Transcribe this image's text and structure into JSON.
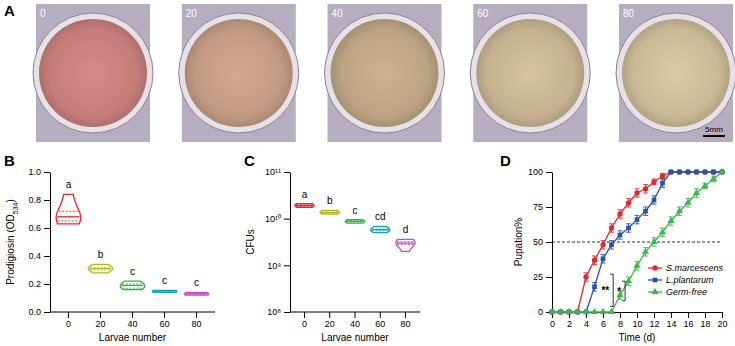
{
  "chart_data": [
    {
      "type": "image",
      "panel": "A",
      "labels": [
        "0",
        "20",
        "40",
        "60",
        "80"
      ],
      "colors": [
        "#d98a86",
        "#d4a890",
        "#cdb28f",
        "#d8c39d",
        "#dccaa4"
      ],
      "scale_bar": "5mm"
    },
    {
      "type": "violin",
      "panel": "B",
      "y_label": "Prodigiosin (OD534)",
      "x_label": "Larvae number",
      "categories": [
        "0",
        "20",
        "40",
        "60",
        "80"
      ],
      "values": [
        [
          0.63,
          0.65,
          0.68,
          0.72,
          0.84
        ],
        [
          0.28,
          0.3,
          0.31,
          0.32,
          0.34
        ],
        [
          0.16,
          0.17,
          0.19,
          0.2,
          0.22
        ],
        [
          0.14,
          0.145,
          0.15,
          0.15,
          0.155
        ],
        [
          0.12,
          0.125,
          0.13,
          0.13,
          0.14
        ]
      ],
      "colors": [
        "#e4262b",
        "#b3b624",
        "#2fb24b",
        "#1aa3b0",
        "#c04fbf"
      ],
      "annotations": [
        "a",
        "b",
        "c",
        "c",
        "c"
      ],
      "ylim": [
        0,
        1
      ],
      "yticks": [
        {
          "value": 0,
          "label": "0.0"
        },
        {
          "value": 0.2,
          "label": "0.2"
        },
        {
          "value": 0.4,
          "label": "0.4"
        },
        {
          "value": 0.6,
          "label": "0.6"
        },
        {
          "value": 0.8,
          "label": "0.8"
        },
        {
          "value": 1,
          "label": "1.0"
        }
      ]
    },
    {
      "type": "violin",
      "panel": "C",
      "log": "y",
      "y_label": "CFUs",
      "x_label": "Larvae number",
      "categories": [
        "0",
        "20",
        "40",
        "60",
        "80"
      ],
      "values": [
        [
          17500000000,
          18500000000,
          19000000000,
          20000000000,
          21000000000
        ],
        [
          12500000000,
          13000000000,
          13500000000,
          14000000000,
          15000000000
        ],
        [
          8000000000,
          8500000000,
          8800000000,
          9000000000,
          9500000000
        ],
        [
          5000000000,
          5500000000,
          5800000000,
          6000000000,
          6800000000
        ],
        [
          2000000000,
          2800000000,
          3000000000,
          3200000000,
          3600000000
        ]
      ],
      "colors": [
        "#e4262b",
        "#b3b624",
        "#2fb24b",
        "#1aa3b0",
        "#c04fbf"
      ],
      "annotations": [
        "a",
        "b",
        "c",
        "cd",
        "d"
      ],
      "ylim": [
        100000000,
        100000000000
      ],
      "yticks": [
        {
          "value": 100000000,
          "label": "10⁸"
        },
        {
          "value": 1000000000,
          "label": "10⁹"
        },
        {
          "value": 10000000000,
          "label": "10¹⁰"
        },
        {
          "value": 100000000000,
          "label": "10¹¹"
        }
      ]
    },
    {
      "type": "line",
      "panel": "D",
      "y_label": "Pupation%",
      "x_label": "Time (d)",
      "x": [
        0,
        1,
        2,
        3,
        4,
        5,
        6,
        7,
        8,
        9,
        10,
        11,
        12,
        13,
        14,
        15,
        16,
        17,
        18,
        19,
        20
      ],
      "series": [
        {
          "name": "S.marcescens",
          "color": "#e4262b",
          "marker": "circle",
          "values": [
            0,
            0,
            0,
            0,
            25,
            37,
            48,
            60,
            70,
            78,
            85,
            88,
            93,
            97,
            100,
            100,
            100,
            100,
            100,
            100,
            100
          ],
          "errors": [
            0,
            0,
            0,
            0,
            3,
            3,
            3,
            3,
            3,
            3,
            3,
            3,
            2,
            2,
            0,
            0,
            0,
            0,
            0,
            0,
            0
          ]
        },
        {
          "name": "L.plantarum",
          "color": "#2655a8",
          "marker": "square",
          "values": [
            0,
            0,
            0,
            0,
            0,
            18,
            38,
            48,
            55,
            60,
            66,
            72,
            80,
            92,
            100,
            100,
            100,
            100,
            100,
            100,
            100
          ],
          "errors": [
            0,
            0,
            0,
            0,
            0,
            3,
            3,
            3,
            3,
            3,
            3,
            3,
            3,
            3,
            0,
            0,
            0,
            0,
            0,
            0,
            0
          ]
        },
        {
          "name": "Germ-free",
          "color": "#3cb84a",
          "marker": "triangle",
          "values": [
            0,
            0,
            0,
            0,
            0,
            0,
            0,
            0,
            12,
            22,
            33,
            43,
            50,
            57,
            65,
            72,
            78,
            85,
            90,
            95,
            100
          ],
          "errors": [
            0,
            0,
            0,
            0,
            0,
            0,
            0,
            0,
            3,
            3,
            3,
            3,
            3,
            3,
            3,
            3,
            3,
            3,
            2,
            2,
            0
          ]
        }
      ],
      "hline": 50,
      "significance": [
        "**",
        "*"
      ],
      "legend": "lower right",
      "xlim": [
        0,
        20
      ],
      "xticks": [
        0,
        2,
        4,
        6,
        8,
        10,
        12,
        14,
        16,
        18,
        20
      ],
      "ylim": [
        0,
        100
      ],
      "yticks": [
        0,
        25,
        50,
        75,
        100
      ]
    }
  ]
}
